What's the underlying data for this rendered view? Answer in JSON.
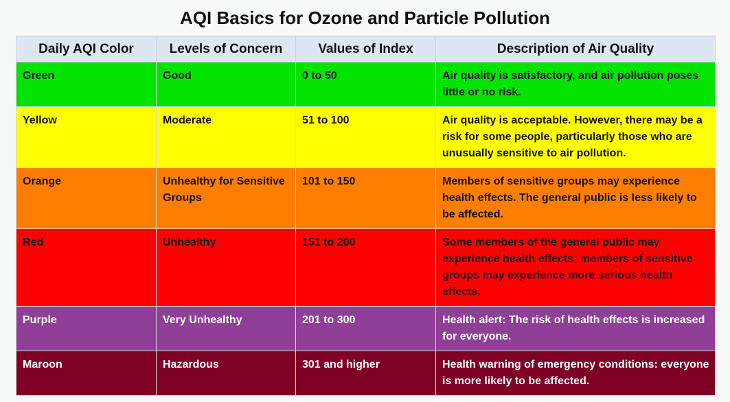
{
  "title": "AQI Basics for Ozone and Particle Pollution",
  "headers": [
    "Daily AQI Color",
    "Levels of Concern",
    "Values of Index",
    "Description of Air Quality"
  ],
  "rows": [
    {
      "color": "Green",
      "level": "Good",
      "values": "0 to 50",
      "description": "Air quality is satisfactory, and air pollution poses little or no risk.",
      "bg": "#00e400"
    },
    {
      "color": "Yellow",
      "level": "Moderate",
      "values": "51 to 100",
      "description": "Air quality is acceptable. However, there may be a risk for some people, particularly those who are unusually sensitive to air pollution.",
      "bg": "#ffff00"
    },
    {
      "color": "Orange",
      "level": "Unhealthy for Sensitive Groups",
      "values": "101 to 150",
      "description": "Members of sensitive groups may experience health effects. The general public is less likely to be affected.",
      "bg": "#ff7e00"
    },
    {
      "color": "Red",
      "level": "Unhealthy",
      "values": "151 to 200",
      "description": "Some members of the general public may experience health effects; members of sensitive groups may experience more serious health effects.",
      "bg": "#ff0000"
    },
    {
      "color": "Purple",
      "level": "Very Unhealthy",
      "values": "201 to 300",
      "description": "Health alert: The risk of health effects is increased for everyone.",
      "bg": "#8f3f97"
    },
    {
      "color": "Maroon",
      "level": "Hazardous",
      "values": "301 and higher",
      "description": "Health warning of emergency conditions: everyone is more likely to be affected.",
      "bg": "#7e0023"
    }
  ]
}
